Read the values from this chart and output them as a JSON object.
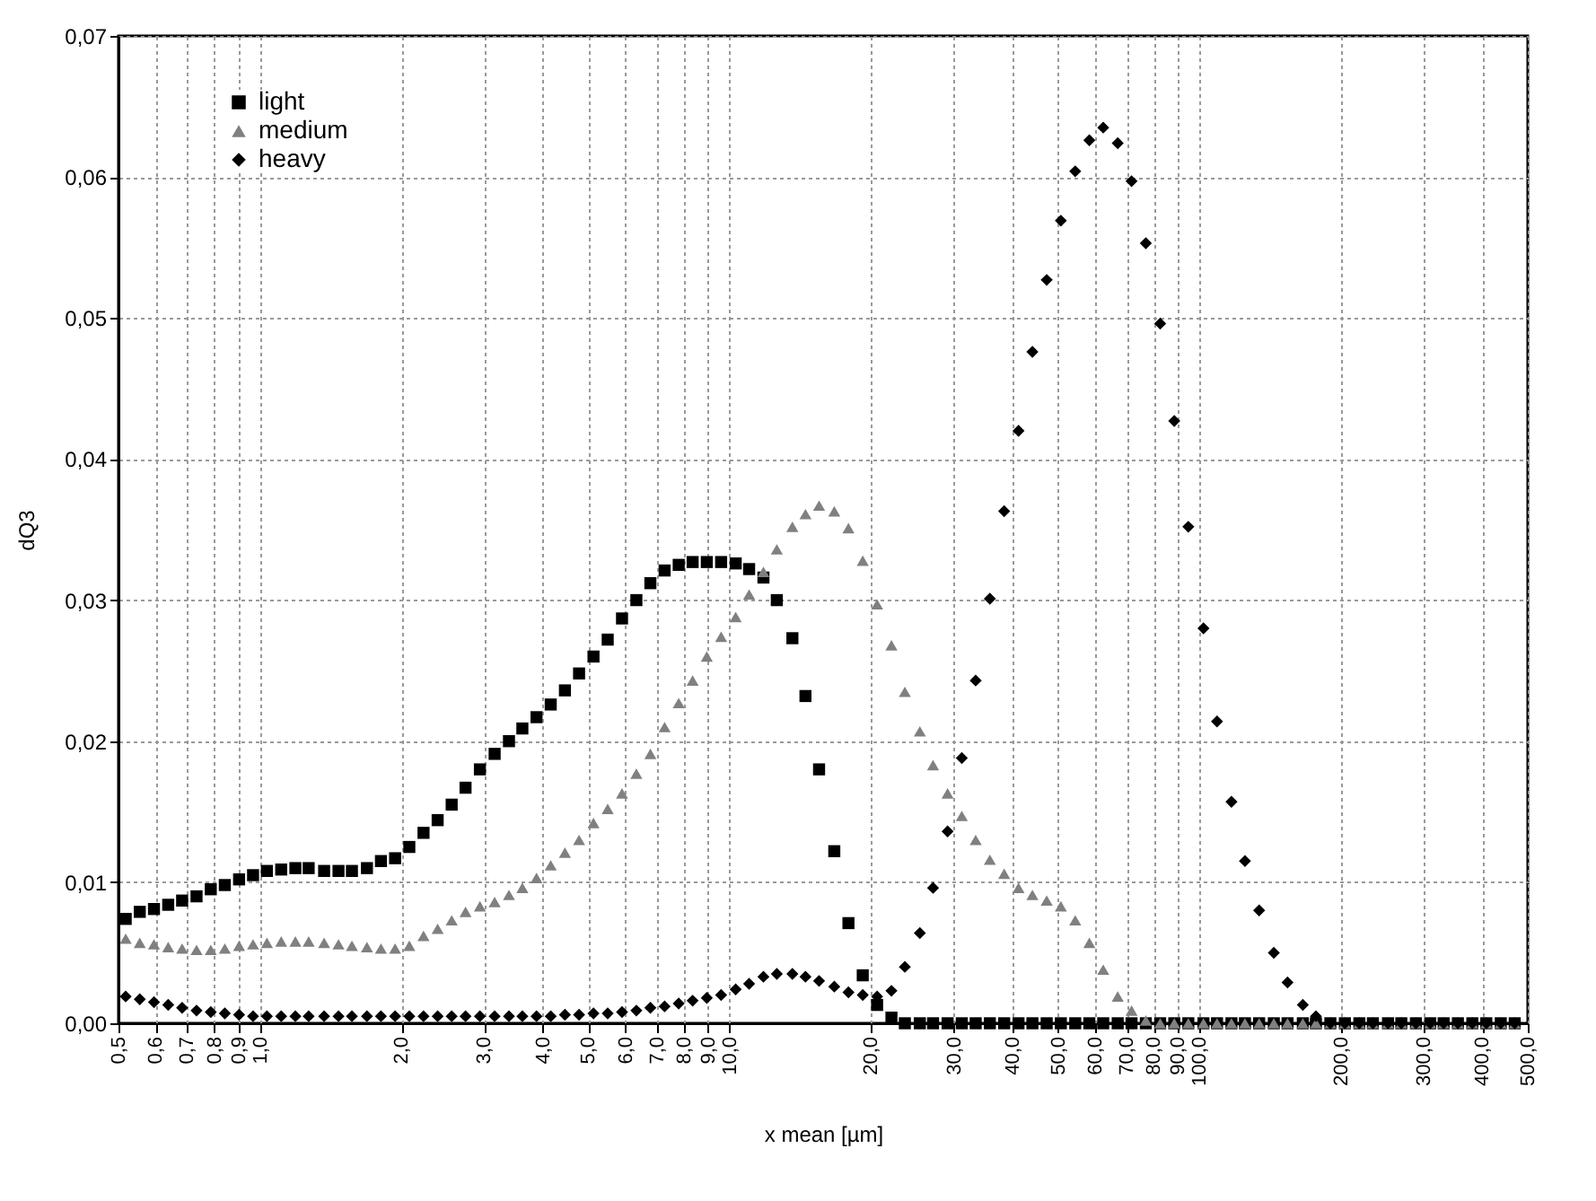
{
  "chart_data": {
    "type": "scatter",
    "xlabel": "x mean [µm]",
    "ylabel": "dQ3",
    "log": "x",
    "grid": true,
    "legend": "top left",
    "xlim": [
      0.5,
      500
    ],
    "ylim": [
      0,
      0.07
    ],
    "xticks": [
      {
        "value": 0.5,
        "label": "0,5"
      },
      {
        "value": 0.6,
        "label": "0,6"
      },
      {
        "value": 0.7,
        "label": "0,7"
      },
      {
        "value": 0.8,
        "label": "0,8"
      },
      {
        "value": 0.9,
        "label": "0,9"
      },
      {
        "value": 1,
        "label": "1,0"
      },
      {
        "value": 2,
        "label": "2,0"
      },
      {
        "value": 3,
        "label": "3,0"
      },
      {
        "value": 4,
        "label": "4,0"
      },
      {
        "value": 5,
        "label": "5,0"
      },
      {
        "value": 6,
        "label": "6,0"
      },
      {
        "value": 7,
        "label": "7,0"
      },
      {
        "value": 8,
        "label": "8,0"
      },
      {
        "value": 9,
        "label": "9,0"
      },
      {
        "value": 10,
        "label": "10,0"
      },
      {
        "value": 20,
        "label": "20,0"
      },
      {
        "value": 30,
        "label": "30,0"
      },
      {
        "value": 40,
        "label": "40,0"
      },
      {
        "value": 50,
        "label": "50,0"
      },
      {
        "value": 60,
        "label": "60,0"
      },
      {
        "value": 70,
        "label": "70,0"
      },
      {
        "value": 80,
        "label": "80,0"
      },
      {
        "value": 90,
        "label": "90,0"
      },
      {
        "value": 100,
        "label": "100,0"
      },
      {
        "value": 200,
        "label": "200,0"
      },
      {
        "value": 300,
        "label": "300,0"
      },
      {
        "value": 400,
        "label": "400,0"
      },
      {
        "value": 500,
        "label": "500,0"
      }
    ],
    "yticks": [
      {
        "value": 0,
        "label": "0,00"
      },
      {
        "value": 0.01,
        "label": "0,01"
      },
      {
        "value": 0.02,
        "label": "0,02"
      },
      {
        "value": 0.03,
        "label": "0,03"
      },
      {
        "value": 0.04,
        "label": "0,04"
      },
      {
        "value": 0.05,
        "label": "0,05"
      },
      {
        "value": 0.06,
        "label": "0,06"
      },
      {
        "value": 0.07,
        "label": "0,07"
      }
    ],
    "x": [
      0.518,
      0.555,
      0.595,
      0.638,
      0.683,
      0.733,
      0.786,
      0.842,
      0.903,
      0.967,
      1.035,
      1.11,
      1.19,
      1.27,
      1.37,
      1.47,
      1.57,
      1.69,
      1.81,
      1.94,
      2.08,
      2.23,
      2.39,
      2.56,
      2.74,
      2.94,
      3.16,
      3.39,
      3.62,
      3.88,
      4.16,
      4.46,
      4.78,
      5.13,
      5.5,
      5.9,
      6.33,
      6.78,
      7.27,
      7.79,
      8.34,
      8.94,
      9.59,
      10.3,
      11,
      11.8,
      12.6,
      13.6,
      14.5,
      15.5,
      16.7,
      17.9,
      19.2,
      20.6,
      22.1,
      23.6,
      25.4,
      27.1,
      29.1,
      31.2,
      33.4,
      35.8,
      38.4,
      41.2,
      44.1,
      47.3,
      50.7,
      54.4,
      58.3,
      62.4,
      67,
      71.7,
      76.9,
      82.5,
      88.4,
      94.7,
      102,
      109,
      117,
      125,
      134,
      144,
      154,
      166,
      177,
      190,
      204,
      219,
      234,
      252,
      269,
      289,
      310,
      331,
      355,
      381,
      408,
      438,
      469
    ],
    "series": [
      {
        "name": "light",
        "color": "#000000",
        "marker": "square",
        "values": [
          0.0074,
          0.0079,
          0.0081,
          0.0084,
          0.0087,
          0.009,
          0.0095,
          0.0098,
          0.0102,
          0.0105,
          0.0108,
          0.0109,
          0.011,
          0.011,
          0.0108,
          0.0108,
          0.0108,
          0.011,
          0.0115,
          0.0117,
          0.0125,
          0.0135,
          0.0144,
          0.0155,
          0.0167,
          0.018,
          0.0191,
          0.02,
          0.0209,
          0.0217,
          0.0226,
          0.0236,
          0.0248,
          0.026,
          0.0272,
          0.0287,
          0.03,
          0.0312,
          0.0321,
          0.0325,
          0.0327,
          0.0327,
          0.0327,
          0.0326,
          0.0322,
          0.0316,
          0.03,
          0.0273,
          0.0232,
          0.018,
          0.0122,
          0.0071,
          0.0034,
          0.0013,
          0.0004,
          0,
          0,
          0,
          0,
          0,
          0,
          0,
          0,
          0,
          0,
          0,
          0,
          0,
          0,
          0,
          0,
          0,
          0,
          0,
          0,
          0,
          0,
          0,
          0,
          0,
          0,
          0,
          0,
          0,
          0,
          0,
          0,
          0,
          0,
          0,
          0,
          0,
          0,
          0,
          0,
          0,
          0,
          0,
          0
        ]
      },
      {
        "name": "medium",
        "color": "#808080",
        "marker": "triangle",
        "values": [
          0.006,
          0.0057,
          0.0056,
          0.0054,
          0.0053,
          0.0052,
          0.0052,
          0.0053,
          0.0055,
          0.0056,
          0.0057,
          0.0058,
          0.0058,
          0.0058,
          0.0057,
          0.0056,
          0.0055,
          0.0054,
          0.0053,
          0.0053,
          0.0055,
          0.0062,
          0.0067,
          0.0073,
          0.0079,
          0.0083,
          0.0086,
          0.0091,
          0.0096,
          0.0103,
          0.0112,
          0.0121,
          0.013,
          0.0142,
          0.0152,
          0.0163,
          0.0177,
          0.0191,
          0.021,
          0.0227,
          0.0243,
          0.026,
          0.0274,
          0.0288,
          0.0304,
          0.032,
          0.0336,
          0.0352,
          0.0361,
          0.0367,
          0.0363,
          0.0351,
          0.0328,
          0.0297,
          0.0268,
          0.0235,
          0.0207,
          0.0183,
          0.0163,
          0.0147,
          0.013,
          0.0116,
          0.0106,
          0.0096,
          0.0091,
          0.0087,
          0.0083,
          0.0073,
          0.0057,
          0.0038,
          0.0019,
          0.0009,
          0.0002,
          0,
          0,
          0,
          0,
          0,
          0,
          0,
          0,
          0,
          0,
          0,
          0,
          0,
          0,
          0,
          0,
          0,
          0,
          0,
          0,
          0,
          0,
          0,
          0,
          0,
          0
        ]
      },
      {
        "name": "heavy",
        "color": "#000000",
        "marker": "diamond",
        "values": [
          0.0019,
          0.0017,
          0.0015,
          0.0013,
          0.0011,
          0.0009,
          0.0008,
          0.0007,
          0.0006,
          0.0005,
          0.0005,
          0.0005,
          0.0005,
          0.0005,
          0.0005,
          0.0005,
          0.0005,
          0.0005,
          0.0005,
          0.0005,
          0.0005,
          0.0005,
          0.0005,
          0.0005,
          0.0005,
          0.0005,
          0.0005,
          0.0005,
          0.0005,
          0.0005,
          0.0005,
          0.0006,
          0.0006,
          0.0007,
          0.0007,
          0.0008,
          0.0009,
          0.0011,
          0.0012,
          0.0014,
          0.0016,
          0.0018,
          0.002,
          0.0024,
          0.0028,
          0.0033,
          0.0035,
          0.0035,
          0.0033,
          0.003,
          0.0026,
          0.0022,
          0.002,
          0.0019,
          0.0023,
          0.004,
          0.0064,
          0.0096,
          0.0136,
          0.0188,
          0.0243,
          0.0301,
          0.0363,
          0.042,
          0.0476,
          0.0527,
          0.0569,
          0.0604,
          0.0626,
          0.0635,
          0.0624,
          0.0597,
          0.0553,
          0.0496,
          0.0427,
          0.0352,
          0.028,
          0.0214,
          0.0157,
          0.0115,
          0.008,
          0.005,
          0.0029,
          0.0013,
          0.0005,
          0,
          0,
          0,
          0,
          0,
          0,
          0,
          0,
          0,
          0,
          0,
          0,
          0,
          0
        ]
      }
    ]
  }
}
